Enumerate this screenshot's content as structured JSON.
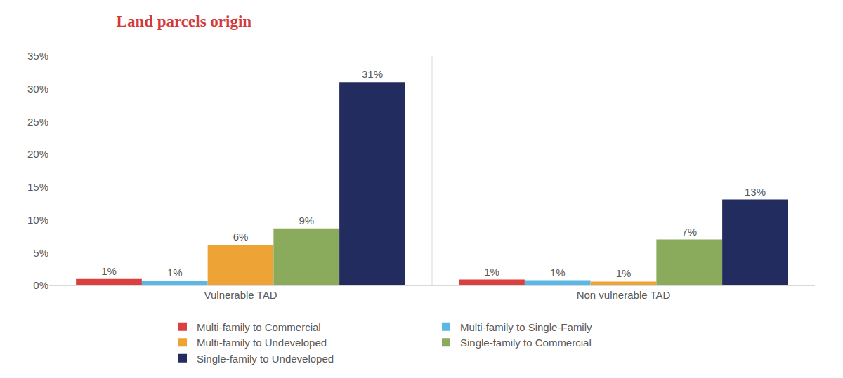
{
  "chart_data": {
    "type": "bar",
    "title": "Land parcels origin",
    "categories": [
      "Vulnerable TAD",
      "Non vulnerable TAD"
    ],
    "series": [
      {
        "name": "Multi-family to Commercial",
        "color": "#d9403f",
        "values": [
          1,
          0.9
        ],
        "value_labels": [
          "1%",
          "1%"
        ]
      },
      {
        "name": "Multi-family to Single-Family",
        "color": "#5bb8e6",
        "values": [
          0.7,
          0.8
        ],
        "value_labels": [
          "1%",
          "1%"
        ]
      },
      {
        "name": "Multi-family to Undeveloped",
        "color": "#eea336",
        "values": [
          6.2,
          0.6
        ],
        "value_labels": [
          "6%",
          "1%"
        ]
      },
      {
        "name": "Single-family to Commercial",
        "color": "#8aab5c",
        "values": [
          8.7,
          7
        ],
        "value_labels": [
          "9%",
          "7%"
        ]
      },
      {
        "name": "Single-family to Undeveloped",
        "color": "#222c5f",
        "values": [
          31,
          13.1
        ],
        "value_labels": [
          "31%",
          "13%"
        ]
      }
    ],
    "ylim": [
      0,
      35
    ],
    "yticks": [
      {
        "value": 0,
        "label": "0%"
      },
      {
        "value": 5,
        "label": "5%"
      },
      {
        "value": 10,
        "label": "10%"
      },
      {
        "value": 15,
        "label": "15%"
      },
      {
        "value": 20,
        "label": "20%"
      },
      {
        "value": 25,
        "label": "25%"
      },
      {
        "value": 30,
        "label": "30%"
      },
      {
        "value": 35,
        "label": "35%"
      }
    ],
    "grid": false,
    "legend": "bottom",
    "data_labels": true
  }
}
